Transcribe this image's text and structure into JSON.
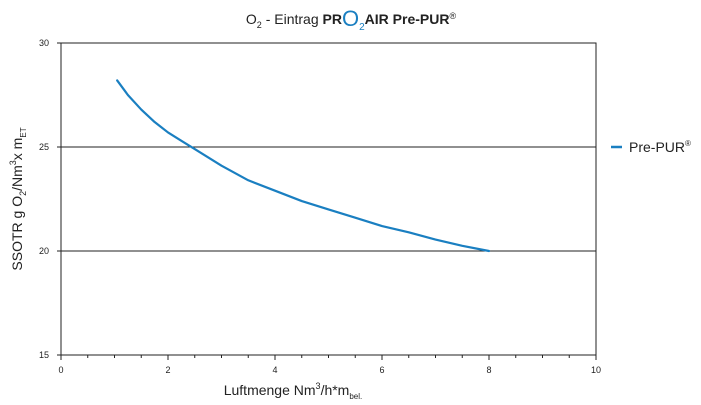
{
  "title": {
    "o": "O",
    "o_sub": "2",
    "eintrag": " - Eintrag ",
    "pr": "PR",
    "logo_o": "O",
    "logo_sub": "2",
    "rest": "AIR Pre-PUR",
    "reg": "®"
  },
  "axes": {
    "y_main": "SSOTR g O",
    "y_sub1": "2",
    "y_mid": "/Nm",
    "y_sup": "3",
    "y_mid2": "x m",
    "y_sub2": "ET",
    "x_main": "Luftmenge Nm",
    "x_sup": "3",
    "x_mid": "/h*m",
    "x_sub": "bel."
  },
  "colors": {
    "series": "#1a7fc1",
    "logo": "#1a7fc1",
    "grid": "#222222"
  },
  "chart_data": {
    "type": "line",
    "title": "O2 - Eintrag PRO2AIR Pre-PUR®",
    "xlabel": "Luftmenge Nm3/h*m bel.",
    "ylabel": "SSOTR g O2/Nm3 x m ET",
    "xlim": [
      0,
      10
    ],
    "ylim": [
      15,
      30
    ],
    "x_ticks": [
      0,
      2,
      4,
      6,
      8,
      10
    ],
    "y_ticks": [
      15,
      20,
      25,
      30
    ],
    "grid": "horizontal",
    "legend_position": "right",
    "series": [
      {
        "name": "Pre-PUR",
        "name_sup": "®",
        "x": [
          1.05,
          1.25,
          1.5,
          1.75,
          2.0,
          2.25,
          2.5,
          3.0,
          3.5,
          4.0,
          4.5,
          5.0,
          5.5,
          6.0,
          6.5,
          7.0,
          7.5,
          8.0
        ],
        "y": [
          28.2,
          27.5,
          26.8,
          26.2,
          25.7,
          25.3,
          24.9,
          24.1,
          23.4,
          22.9,
          22.4,
          22.0,
          21.6,
          21.2,
          20.9,
          20.55,
          20.25,
          20.0
        ]
      }
    ]
  }
}
